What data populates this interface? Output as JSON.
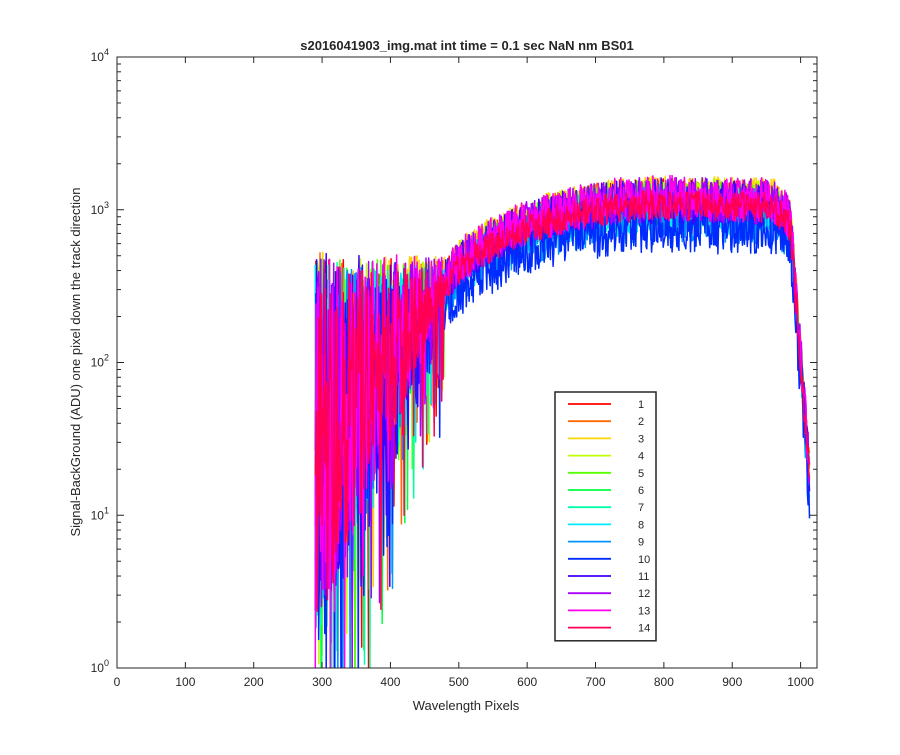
{
  "chart_data": {
    "type": "line",
    "title": "s2016041903_img.mat int time = 0.1 sec  NaN nm BS01",
    "xlabel": "Wavelength Pixels",
    "ylabel": "Signal-BackGround (ADU) one pixel down the track direction",
    "xlim": [
      0,
      1024
    ],
    "ylim": [
      1,
      10000
    ],
    "yscale": "log",
    "grid": false,
    "legend_position": "bottom-right inside",
    "x_ticks": [
      0,
      100,
      200,
      300,
      400,
      500,
      600,
      700,
      800,
      900,
      1000
    ],
    "x_tick_labels": [
      "0",
      "100",
      "200",
      "300",
      "400",
      "500",
      "600",
      "700",
      "800",
      "900",
      "1000"
    ],
    "y_ticks": [
      1,
      10,
      100,
      1000,
      10000
    ],
    "y_tick_base": "10",
    "y_tick_exponents": [
      "0",
      "1",
      "2",
      "3",
      "4"
    ],
    "x_start": 290,
    "x_end": 1013,
    "x_step": 1,
    "series": [
      {
        "name": "1",
        "color": "#ff0000",
        "scale": 1.05,
        "seed": 1,
        "noise": 0.14
      },
      {
        "name": "2",
        "color": "#ff6a00",
        "scale": 1.08,
        "seed": 2,
        "noise": 0.14
      },
      {
        "name": "3",
        "color": "#ffd500",
        "scale": 1.1,
        "seed": 3,
        "noise": 0.14
      },
      {
        "name": "4",
        "color": "#bfff00",
        "scale": 1.07,
        "seed": 4,
        "noise": 0.14
      },
      {
        "name": "5",
        "color": "#55ff00",
        "scale": 1.02,
        "seed": 5,
        "noise": 0.14
      },
      {
        "name": "6",
        "color": "#00ff40",
        "scale": 0.98,
        "seed": 6,
        "noise": 0.14
      },
      {
        "name": "7",
        "color": "#00ffaa",
        "scale": 0.95,
        "seed": 7,
        "noise": 0.14
      },
      {
        "name": "8",
        "color": "#00eaff",
        "scale": 0.9,
        "seed": 8,
        "noise": 0.16
      },
      {
        "name": "9",
        "color": "#0095ff",
        "scale": 0.85,
        "seed": 9,
        "noise": 0.18
      },
      {
        "name": "10",
        "color": "#002bff",
        "scale": 0.72,
        "seed": 10,
        "noise": 0.18
      },
      {
        "name": "11",
        "color": "#4000ff",
        "scale": 1.04,
        "seed": 11,
        "noise": 0.15
      },
      {
        "name": "12",
        "color": "#aa00ff",
        "scale": 1.06,
        "seed": 12,
        "noise": 0.15
      },
      {
        "name": "13",
        "color": "#ff00ea",
        "scale": 1.08,
        "seed": 13,
        "noise": 0.15
      },
      {
        "name": "14",
        "color": "#ff0055",
        "scale": 0.97,
        "seed": 14,
        "noise": 0.1
      }
    ]
  }
}
